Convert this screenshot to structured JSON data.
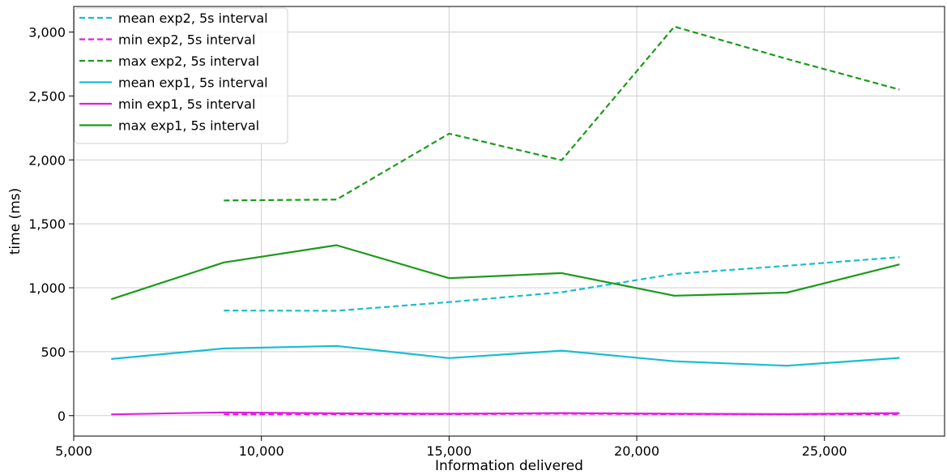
{
  "chart_data": {
    "type": "line",
    "title": "",
    "xlabel": "Information delivered",
    "ylabel": "time (ms)",
    "xlim": [
      5000,
      28200
    ],
    "ylim": [
      -160,
      3200
    ],
    "xticks": [
      5000,
      10000,
      15000,
      20000,
      25000
    ],
    "xtick_labels": [
      "5,000",
      "10,000",
      "15,000",
      "20,000",
      "25,000"
    ],
    "yticks": [
      0,
      500,
      1000,
      1500,
      2000,
      2500,
      3000
    ],
    "ytick_labels": [
      "0",
      "500",
      "1,000",
      "1,500",
      "2,000",
      "2,500",
      "3,000"
    ],
    "grid": true,
    "legend_position": "top-left",
    "series": [
      {
        "name": "mean exp2, 5s interval",
        "color": "#17becf",
        "dashed": true,
        "x": [
          9000,
          12000,
          15000,
          18000,
          21000,
          24000,
          27000
        ],
        "y": [
          822,
          820,
          888,
          965,
          1108,
          1172,
          1240
        ]
      },
      {
        "name": "min exp2, 5s interval",
        "color": "#e020e0",
        "dashed": true,
        "x": [
          9000,
          12000,
          15000,
          18000,
          21000,
          24000,
          27000
        ],
        "y": [
          10,
          12,
          12,
          15,
          12,
          10,
          10
        ]
      },
      {
        "name": "max exp2, 5s interval",
        "color": "#1a9a1a",
        "dashed": true,
        "x": [
          9000,
          12000,
          15000,
          18000,
          21000,
          24000,
          27000
        ],
        "y": [
          1683,
          1690,
          2205,
          1998,
          3043,
          2790,
          2550
        ]
      },
      {
        "name": "mean exp1, 5s interval",
        "color": "#17becf",
        "dashed": false,
        "x": [
          6000,
          9000,
          12000,
          15000,
          18000,
          21000,
          24000,
          27000
        ],
        "y": [
          443,
          525,
          545,
          450,
          508,
          425,
          390,
          452
        ]
      },
      {
        "name": "min exp1, 5s interval",
        "color": "#e020e0",
        "dashed": false,
        "x": [
          6000,
          9000,
          12000,
          15000,
          18000,
          21000,
          24000,
          27000
        ],
        "y": [
          10,
          25,
          18,
          15,
          20,
          15,
          12,
          20
        ]
      },
      {
        "name": "max exp1, 5s interval",
        "color": "#1a9a1a",
        "dashed": false,
        "x": [
          6000,
          9000,
          12000,
          15000,
          18000,
          21000,
          24000,
          27000
        ],
        "y": [
          910,
          1198,
          1333,
          1075,
          1115,
          938,
          962,
          1183
        ]
      }
    ]
  }
}
